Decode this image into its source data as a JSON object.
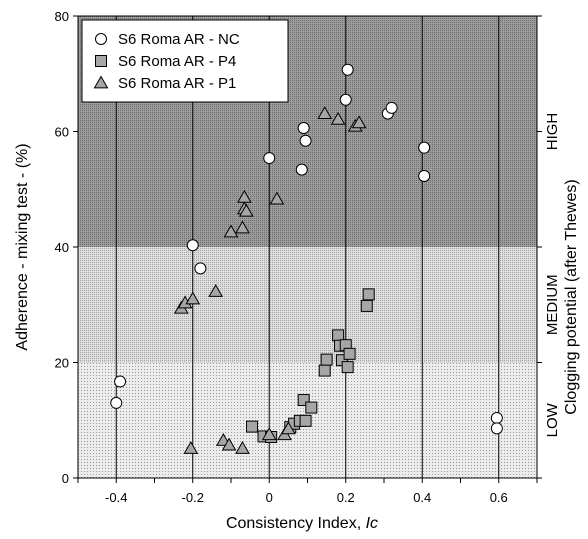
{
  "chart_data": {
    "type": "scatter",
    "xlabel_main": "Consistency Index, ",
    "xlabel_italic": "Ic",
    "ylabel": "Adherence - mixing test - (%)",
    "secondary_ylabel": "Clogging potential (after Thewes)",
    "xlim": [
      -0.5,
      0.7
    ],
    "ylim": [
      0,
      80
    ],
    "x_ticks": [
      -0.4,
      -0.2,
      0,
      0.2,
      0.4,
      0.6
    ],
    "x_tick_labels": [
      "-0.4",
      "-0.2",
      "0",
      "0.2",
      "0.4",
      "0.6"
    ],
    "y_ticks": [
      0,
      20,
      40,
      60,
      80
    ],
    "y_tick_labels": [
      "0",
      "20",
      "40",
      "60",
      "80"
    ],
    "vertical_gridlines": [
      -0.4,
      -0.2,
      0,
      0.2,
      0.4,
      0.6
    ],
    "zones": [
      {
        "label": "LOW",
        "y_from": 0,
        "y_to": 20,
        "color": "#e8e8e8"
      },
      {
        "label": "MEDIUM",
        "y_from": 20,
        "y_to": 40,
        "color": "#d4d4d4"
      },
      {
        "label": "HIGH",
        "y_from": 40,
        "y_to": 80,
        "color": "#8f8f8f"
      }
    ],
    "legend_position": "top-left",
    "series": [
      {
        "name": "S6 Roma AR - NC",
        "marker": "circle",
        "fill": "#ffffff",
        "points": [
          [
            -0.4,
            13
          ],
          [
            -0.39,
            16.7
          ],
          [
            -0.2,
            40.3
          ],
          [
            -0.18,
            36.3
          ],
          [
            0,
            55.4
          ],
          [
            0.085,
            53.4
          ],
          [
            0.09,
            60.6
          ],
          [
            0.095,
            58.4
          ],
          [
            0.2,
            65.5
          ],
          [
            0.205,
            70.7
          ],
          [
            0.31,
            63.1
          ],
          [
            0.32,
            64.1
          ],
          [
            0.405,
            57.2
          ],
          [
            0.405,
            52.3
          ],
          [
            0.595,
            10.4
          ],
          [
            0.595,
            8.6
          ]
        ]
      },
      {
        "name": "S6 Roma AR - P4",
        "marker": "square",
        "fill": "#a6a6a6",
        "points": [
          [
            -0.045,
            8.9
          ],
          [
            -0.015,
            7.2
          ],
          [
            0.005,
            7.1
          ],
          [
            0.055,
            8.8
          ],
          [
            0.065,
            9.4
          ],
          [
            0.08,
            9.9
          ],
          [
            0.09,
            13.5
          ],
          [
            0.095,
            9.9
          ],
          [
            0.11,
            12.2
          ],
          [
            0.145,
            18.6
          ],
          [
            0.15,
            20.5
          ],
          [
            0.18,
            24.7
          ],
          [
            0.185,
            22.9
          ],
          [
            0.19,
            20.4
          ],
          [
            0.2,
            23
          ],
          [
            0.205,
            19.2
          ],
          [
            0.21,
            21.5
          ],
          [
            0.255,
            29.8
          ],
          [
            0.26,
            31.8
          ]
        ]
      },
      {
        "name": "S6 Roma AR - P1",
        "marker": "triangle",
        "fill": "#a6a6a6",
        "points": [
          [
            -0.23,
            29.4
          ],
          [
            -0.22,
            30.3
          ],
          [
            -0.2,
            31
          ],
          [
            -0.205,
            5.1
          ],
          [
            -0.14,
            32.3
          ],
          [
            -0.12,
            6.5
          ],
          [
            -0.105,
            5.7
          ],
          [
            -0.1,
            42.6
          ],
          [
            -0.07,
            43.3
          ],
          [
            -0.065,
            48.6
          ],
          [
            -0.065,
            46.6
          ],
          [
            -0.06,
            46.2
          ],
          [
            -0.07,
            5.1
          ],
          [
            0,
            7.5
          ],
          [
            0.04,
            7.5
          ],
          [
            0.05,
            8.5
          ],
          [
            0.02,
            48.3
          ],
          [
            0.145,
            63.1
          ],
          [
            0.18,
            62.1
          ],
          [
            0.225,
            60.9
          ],
          [
            0.235,
            61.5
          ]
        ]
      }
    ]
  }
}
